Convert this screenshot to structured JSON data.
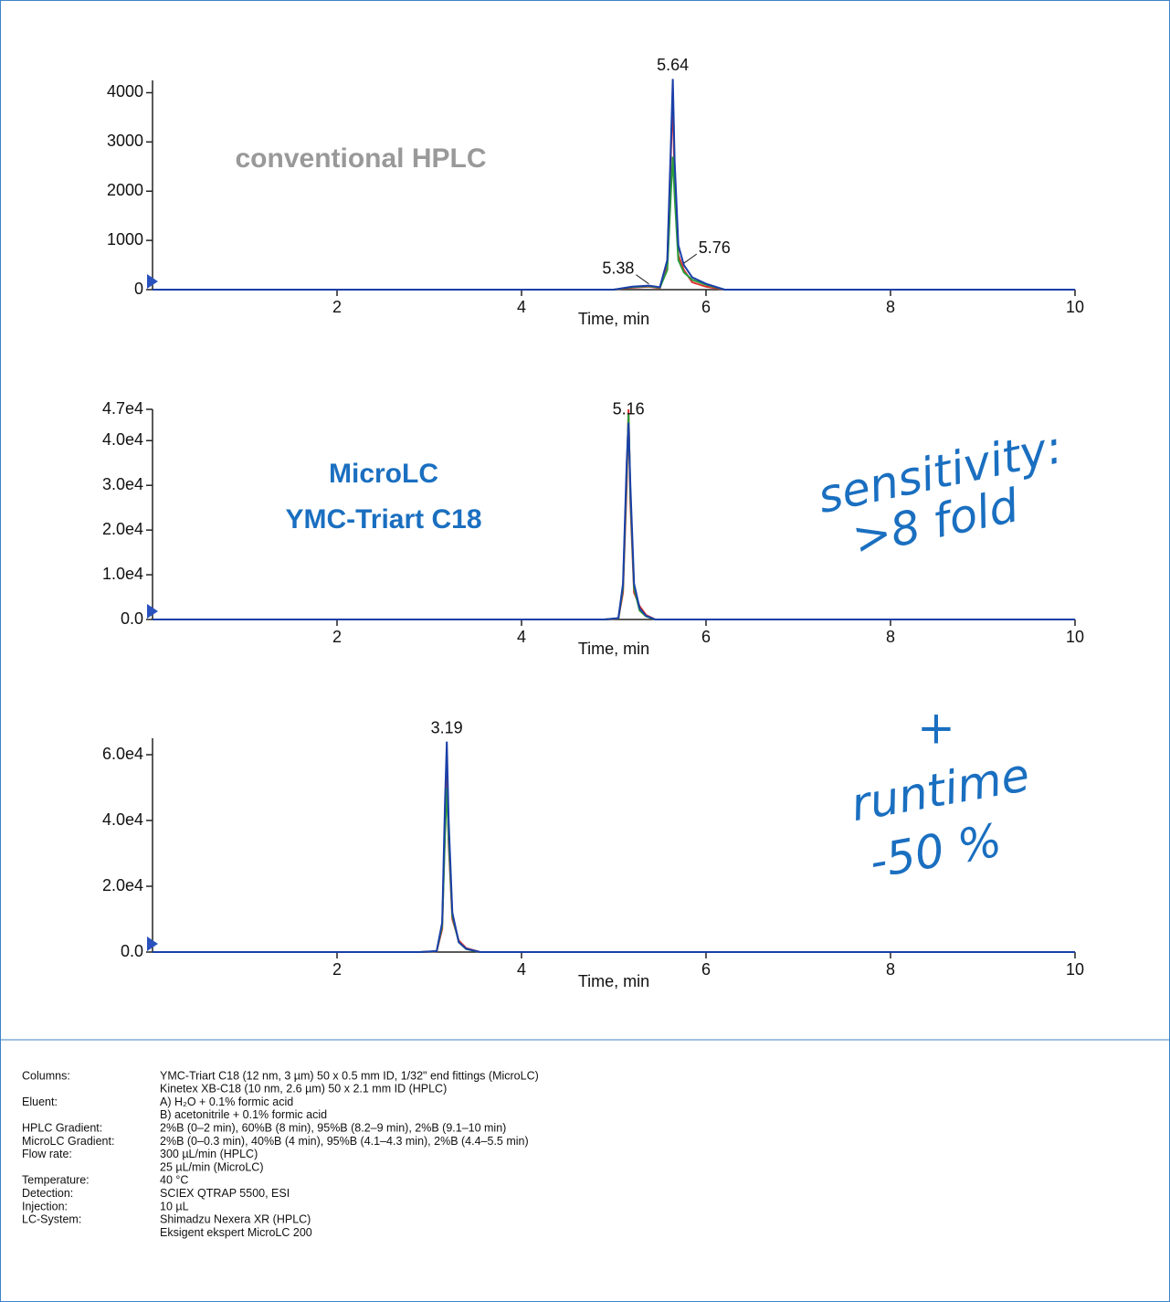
{
  "chart_data": [
    {
      "type": "line",
      "title_lines": [
        "conventional HPLC"
      ],
      "title_color": "#999999",
      "xlabel": "Time, min",
      "x": [
        0,
        5.0,
        5.2,
        5.38,
        5.5,
        5.58,
        5.62,
        5.64,
        5.66,
        5.7,
        5.76,
        5.85,
        6.0,
        6.2,
        10
      ],
      "series": [
        {
          "color": "#e03030",
          "values": [
            0,
            0,
            40,
            60,
            30,
            500,
            2800,
            3900,
            2200,
            700,
            400,
            150,
            60,
            0,
            0
          ]
        },
        {
          "color": "#2a9a3a",
          "values": [
            0,
            0,
            50,
            70,
            40,
            400,
            2000,
            2700,
            1900,
            600,
            350,
            200,
            100,
            0,
            0
          ]
        },
        {
          "color": "#1a3fa8",
          "values": [
            0,
            0,
            60,
            80,
            50,
            600,
            3000,
            4280,
            2600,
            900,
            500,
            250,
            120,
            0,
            0
          ]
        }
      ],
      "peak_labels": [
        5.64,
        5.38,
        5.76
      ],
      "xlim": [
        0,
        10
      ],
      "xticks": [
        2,
        4,
        6,
        8,
        10
      ],
      "ylim": [
        0,
        4250
      ],
      "yticks": [
        0,
        1000,
        2000,
        3000,
        4000
      ]
    },
    {
      "type": "line",
      "title_lines": [
        "MicroLC",
        "YMC-Triart C18"
      ],
      "title_color": "#1a6fc0",
      "xlabel": "Time, min",
      "x": [
        0,
        4.9,
        5.05,
        5.1,
        5.14,
        5.16,
        5.18,
        5.22,
        5.28,
        5.35,
        5.45,
        10
      ],
      "series": [
        {
          "color": "#e03030",
          "values": [
            0,
            0,
            200,
            6000,
            30000,
            47000,
            26000,
            6000,
            3000,
            1000,
            0,
            0
          ]
        },
        {
          "color": "#2a9a3a",
          "values": [
            0,
            0,
            250,
            7000,
            33000,
            46000,
            28000,
            7000,
            2000,
            700,
            0,
            0
          ]
        },
        {
          "color": "#1a3fa8",
          "values": [
            0,
            0,
            300,
            8000,
            35000,
            44000,
            30000,
            8000,
            2500,
            800,
            0,
            0
          ]
        }
      ],
      "peak_labels": [
        5.16
      ],
      "xlim": [
        0,
        10
      ],
      "xticks": [
        2,
        4,
        6,
        8,
        10
      ],
      "ylim": [
        0,
        47000
      ],
      "yticks": [
        {
          "value": 0,
          "label": "0.0"
        },
        {
          "value": 10000,
          "label": "1.0e4"
        },
        {
          "value": 20000,
          "label": "2.0e4"
        },
        {
          "value": 30000,
          "label": "3.0e4"
        },
        {
          "value": 40000,
          "label": "4.0e4"
        },
        {
          "value": 47000,
          "label": "4.7e4"
        }
      ]
    },
    {
      "type": "line",
      "xlabel": "Time, min",
      "x": [
        0,
        2.9,
        3.08,
        3.14,
        3.17,
        3.19,
        3.21,
        3.25,
        3.32,
        3.4,
        3.55,
        10
      ],
      "series": [
        {
          "color": "#e03030",
          "values": [
            0,
            0,
            200,
            7000,
            38000,
            55000,
            33000,
            10000,
            3500,
            1200,
            0,
            0
          ]
        },
        {
          "color": "#2a9a3a",
          "values": [
            0,
            0,
            250,
            8000,
            35000,
            50000,
            35000,
            11000,
            3000,
            900,
            0,
            0
          ]
        },
        {
          "color": "#1a3fa8",
          "values": [
            0,
            0,
            300,
            9000,
            45000,
            64000,
            40000,
            12000,
            3000,
            1000,
            0,
            0
          ]
        }
      ],
      "peak_labels": [
        3.19
      ],
      "xlim": [
        0,
        10
      ],
      "xticks": [
        2,
        4,
        6,
        8,
        10
      ],
      "ylim": [
        0,
        65000
      ],
      "yticks": [
        {
          "value": 0,
          "label": "0.0"
        },
        {
          "value": 20000,
          "label": "2.0e4"
        },
        {
          "value": 40000,
          "label": "4.0e4"
        },
        {
          "value": 60000,
          "label": "6.0e4"
        }
      ]
    }
  ],
  "annotations": [
    "sensitivity:",
    ">8 fold",
    "+",
    "runtime",
    "-50 %"
  ],
  "conditions": [
    {
      "label": "Columns:",
      "lines": [
        "YMC-Triart C18 (12 nm, 3 µm) 50 x 0.5 mm ID, 1/32\" end fittings (MicroLC)",
        "Kinetex XB-C18 (10 nm, 2.6 µm) 50 x 2.1 mm ID (HPLC)"
      ]
    },
    {
      "label": "Eluent:",
      "lines": [
        "A) H₂O + 0.1% formic acid",
        "B) acetonitrile + 0.1% formic acid"
      ]
    },
    {
      "label": "HPLC Gradient:",
      "lines": [
        "2%B (0–2 min), 60%B (8 min), 95%B (8.2–9 min), 2%B (9.1–10 min)"
      ]
    },
    {
      "label": "MicroLC Gradient:",
      "lines": [
        "2%B (0–0.3 min), 40%B (4 min), 95%B (4.1–4.3 min), 2%B (4.4–5.5 min)"
      ]
    },
    {
      "label": "Flow rate:",
      "lines": [
        "300 µL/min (HPLC)",
        "25 µL/min (MicroLC)"
      ]
    },
    {
      "label": "Temperature:",
      "lines": [
        "40 °C"
      ]
    },
    {
      "label": "Detection:",
      "lines": [
        "SCIEX QTRAP 5500, ESI"
      ]
    },
    {
      "label": "Injection:",
      "lines": [
        "10 µL"
      ]
    },
    {
      "label": "LC-System:",
      "lines": [
        "Shimadzu Nexera XR (HPLC)",
        "Eksigent ekspert MicroLC 200"
      ]
    }
  ]
}
